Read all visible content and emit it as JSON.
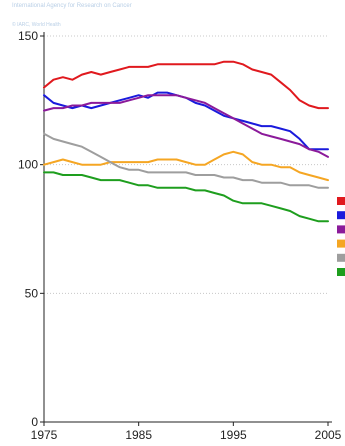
{
  "header": {
    "org_line": "International Agency for Research on Cancer",
    "sub_line": "© IARC, World Health"
  },
  "chart_data": {
    "type": "line",
    "title": "",
    "xlabel": "",
    "ylabel": "",
    "xlim": [
      1975,
      2005
    ],
    "ylim": [
      0,
      150
    ],
    "x_ticks": [
      1975,
      1985,
      1995,
      2005
    ],
    "y_ticks": [
      0,
      50,
      100,
      150
    ],
    "grid": "horizontal dotted",
    "legend": "right (color swatches only)",
    "x": [
      1975,
      1976,
      1977,
      1978,
      1979,
      1980,
      1981,
      1982,
      1983,
      1984,
      1985,
      1986,
      1987,
      1988,
      1989,
      1990,
      1991,
      1992,
      1993,
      1994,
      1995,
      1996,
      1997,
      1998,
      1999,
      2000,
      2001,
      2002,
      2003,
      2004,
      2005
    ],
    "series": [
      {
        "color": "#e0191e",
        "values": [
          130,
          133,
          134,
          133,
          135,
          136,
          135,
          136,
          137,
          138,
          138,
          138,
          139,
          139,
          139,
          139,
          139,
          139,
          139,
          140,
          140,
          139,
          137,
          136,
          135,
          132,
          129,
          125,
          123,
          122,
          122
        ]
      },
      {
        "color": "#1a1adc",
        "values": [
          127,
          124,
          123,
          122,
          123,
          122,
          123,
          124,
          125,
          126,
          127,
          126,
          128,
          128,
          127,
          126,
          124,
          123,
          121,
          119,
          118,
          117,
          116,
          115,
          115,
          114,
          113,
          110,
          106,
          106,
          106
        ]
      },
      {
        "color": "#8b1a9a",
        "values": [
          121,
          122,
          122,
          123,
          123,
          124,
          124,
          124,
          124,
          125,
          126,
          127,
          127,
          127,
          127,
          126,
          125,
          124,
          122,
          120,
          118,
          116,
          114,
          112,
          111,
          110,
          109,
          108,
          106,
          105,
          103
        ]
      },
      {
        "color": "#f5a623",
        "values": [
          100,
          101,
          102,
          101,
          100,
          100,
          100,
          101,
          101,
          101,
          101,
          101,
          102,
          102,
          102,
          101,
          100,
          100,
          102,
          104,
          105,
          104,
          101,
          100,
          100,
          99,
          99,
          97,
          96,
          95,
          94
        ]
      },
      {
        "color": "#9e9e9e",
        "values": [
          112,
          110,
          109,
          108,
          107,
          105,
          103,
          101,
          99,
          98,
          98,
          97,
          97,
          97,
          97,
          97,
          96,
          96,
          96,
          95,
          95,
          94,
          94,
          93,
          93,
          93,
          92,
          92,
          92,
          91,
          91
        ]
      },
      {
        "color": "#1e9e1e",
        "values": [
          97,
          97,
          96,
          96,
          96,
          95,
          94,
          94,
          94,
          93,
          92,
          92,
          91,
          91,
          91,
          91,
          90,
          90,
          89,
          88,
          86,
          85,
          85,
          85,
          84,
          83,
          82,
          80,
          79,
          78,
          78
        ]
      }
    ]
  }
}
